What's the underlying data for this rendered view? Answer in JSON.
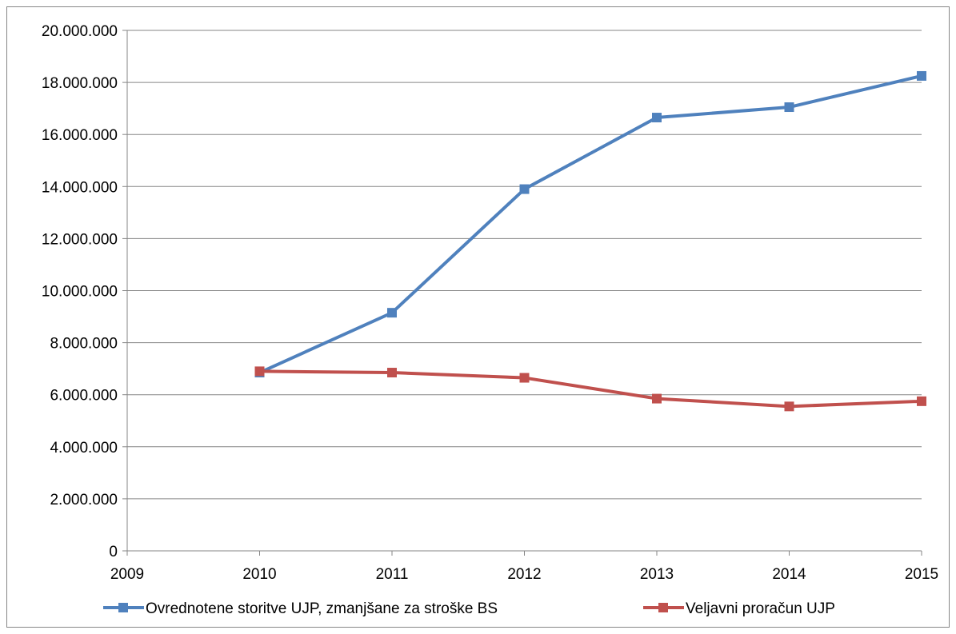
{
  "chart_data": {
    "type": "line",
    "title": "",
    "xlabel": "",
    "ylabel": "",
    "x": [
      2009,
      2010,
      2011,
      2012,
      2013,
      2014,
      2015
    ],
    "xlim": [
      2009,
      2015
    ],
    "ylim": [
      0,
      20000000
    ],
    "yticks": [
      0,
      2000000,
      4000000,
      6000000,
      8000000,
      10000000,
      12000000,
      14000000,
      16000000,
      18000000,
      20000000
    ],
    "ytick_labels": [
      "0",
      "2.000.000",
      "4.000.000",
      "6.000.000",
      "8.000.000",
      "10.000.000",
      "12.000.000",
      "14.000.000",
      "16.000.000",
      "18.000.000",
      "20.000.000"
    ],
    "xtick_labels": [
      "2009",
      "2010",
      "2011",
      "2012",
      "2013",
      "2014",
      "2015"
    ],
    "grid": true,
    "legend_position": "bottom",
    "series": [
      {
        "name": "Ovrednotene storitve UJP, zmanjšane za stroške BS",
        "color": "#4f81bd",
        "x": [
          2010,
          2011,
          2012,
          2013,
          2014,
          2015
        ],
        "values": [
          6850000,
          9150000,
          13900000,
          16650000,
          17050000,
          18250000
        ]
      },
      {
        "name": "Veljavni proračun UJP",
        "color": "#c0504d",
        "x": [
          2010,
          2011,
          2012,
          2013,
          2014,
          2015
        ],
        "values": [
          6900000,
          6850000,
          6650000,
          5850000,
          5550000,
          5750000
        ]
      }
    ]
  }
}
